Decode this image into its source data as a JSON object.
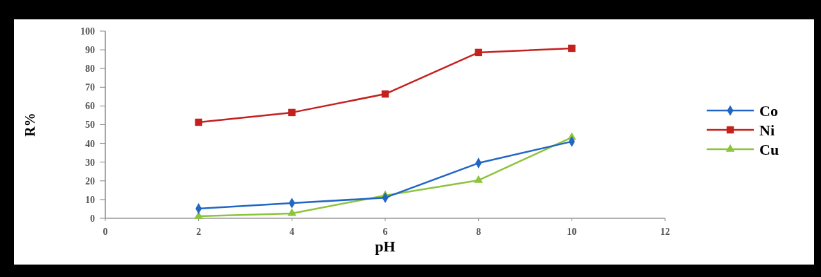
{
  "chart_data": {
    "type": "line",
    "xlabel": "pH",
    "ylabel": "R%",
    "x": [
      2,
      4,
      6,
      8,
      10
    ],
    "series": [
      {
        "name": "Co",
        "color": "#2166c4",
        "values": [
          5.2,
          8.1,
          11,
          29.5,
          41
        ],
        "marker": "diamond"
      },
      {
        "name": "Ni",
        "color": "#c4201e",
        "values": [
          51.3,
          56.5,
          66.4,
          88.6,
          90.8
        ],
        "marker": "square"
      },
      {
        "name": "Cu",
        "color": "#8cc43c",
        "values": [
          1.1,
          2.6,
          12.2,
          20.3,
          43.2
        ],
        "marker": "triangle"
      }
    ],
    "xlim": [
      0,
      12
    ],
    "xticks": [
      0,
      2,
      4,
      6,
      8,
      10,
      12
    ],
    "ylim": [
      0,
      100
    ],
    "yticks": [
      0,
      10,
      20,
      30,
      40,
      50,
      60,
      70,
      80,
      90,
      100
    ],
    "grid": false,
    "legend": "right"
  }
}
